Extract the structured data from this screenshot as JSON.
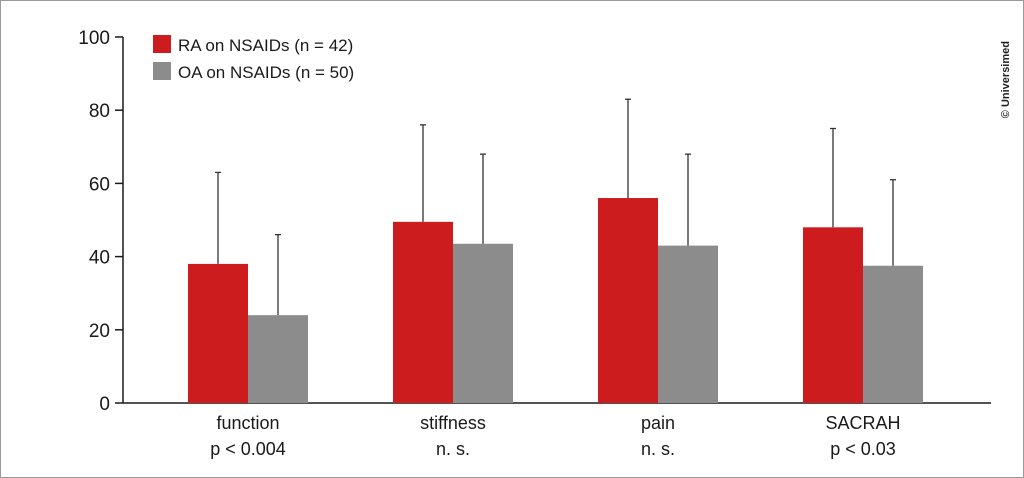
{
  "chart_data": {
    "type": "bar",
    "categories": [
      {
        "name": "function",
        "note": "p < 0.004"
      },
      {
        "name": "stiffness",
        "note": "n. s."
      },
      {
        "name": "pain",
        "note": "n. s."
      },
      {
        "name": "SACRAH",
        "note": "p < 0.03"
      }
    ],
    "series": [
      {
        "name": "RA on NSAIDs (n = 42)",
        "color": "#cc1c1e",
        "values": [
          38,
          49.5,
          56,
          48
        ],
        "error_upper": [
          63,
          76,
          83,
          75
        ]
      },
      {
        "name": "OA on NSAIDs (n = 50)",
        "color": "#8c8c8c",
        "values": [
          24,
          43.5,
          43,
          37.5
        ],
        "error_upper": [
          46,
          68,
          68,
          61
        ]
      }
    ],
    "ylim": [
      0,
      100
    ],
    "yticks": [
      0,
      20,
      40,
      60,
      80,
      100
    ],
    "grid": false,
    "legend_position": "top-left",
    "copyright": "© Universimed"
  }
}
